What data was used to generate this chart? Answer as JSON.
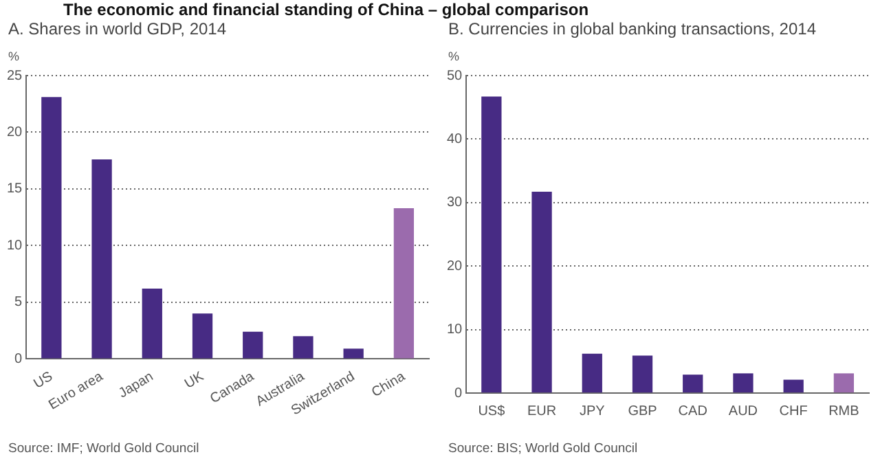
{
  "chart_data": [
    {
      "type": "bar",
      "title": "The economic and financial standing of China – global comparison",
      "subtitle": "A. Shares in world GDP, 2014",
      "ylabel": "%",
      "categories": [
        "US",
        "Euro area",
        "Japan",
        "UK",
        "Canada",
        "Australia",
        "Switzerland",
        "China"
      ],
      "values": [
        23.1,
        17.6,
        6.2,
        4.0,
        2.4,
        2.0,
        0.9,
        13.3
      ],
      "colors": [
        "#472b84",
        "#472b84",
        "#472b84",
        "#472b84",
        "#472b84",
        "#472b84",
        "#472b84",
        "#9b6bad"
      ],
      "ylim": [
        0,
        25
      ],
      "yticks": [
        0,
        5,
        10,
        15,
        20,
        25
      ],
      "grid": "y",
      "legend": false,
      "annotations": [
        "Source: IMF; World Gold Council"
      ]
    },
    {
      "type": "bar",
      "subtitle": "B. Currencies in global banking transactions, 2014",
      "ylabel": "%",
      "categories": [
        "US$",
        "EUR",
        "JPY",
        "GBP",
        "CAD",
        "AUD",
        "CHF",
        "RMB"
      ],
      "values": [
        46.7,
        31.7,
        6.2,
        5.9,
        2.9,
        3.1,
        2.1,
        3.1
      ],
      "colors": [
        "#472b84",
        "#472b84",
        "#472b84",
        "#472b84",
        "#472b84",
        "#472b84",
        "#472b84",
        "#9b6bad"
      ],
      "ylim": [
        0,
        50
      ],
      "yticks": [
        0,
        10,
        20,
        30,
        40,
        50
      ],
      "grid": "y",
      "legend": false,
      "annotations": [
        "Source: BIS; World Gold Council"
      ]
    }
  ]
}
